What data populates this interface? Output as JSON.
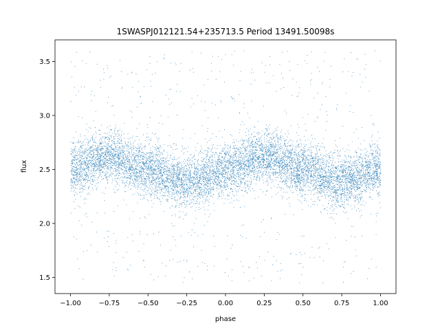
{
  "chart_data": {
    "type": "scatter",
    "title": "1SWASPJ012121.54+235713.5 Period 13491.50098s",
    "xlabel": "phase",
    "ylabel": "flux",
    "xlim": [
      -1.1,
      1.1
    ],
    "ylim": [
      1.35,
      3.7
    ],
    "x_ticks": [
      -1.0,
      -0.75,
      -0.5,
      -0.25,
      0.0,
      0.25,
      0.5,
      0.75,
      1.0
    ],
    "x_tick_labels": [
      "−1.00",
      "−0.75",
      "−0.50",
      "−0.25",
      "0.00",
      "0.25",
      "0.50",
      "0.75",
      "1.00"
    ],
    "y_ticks": [
      1.5,
      2.0,
      2.5,
      3.0,
      3.5
    ],
    "y_tick_labels": [
      "1.5",
      "2.0",
      "2.5",
      "3.0",
      "3.5"
    ],
    "grid": false,
    "legend": "none",
    "marker_color": "#1f77b4",
    "series": [
      {
        "phase_range": [
          -1.0,
          1.0
        ],
        "approx_mean_flux": [
          {
            "phase": -1.0,
            "flux": 2.5
          },
          {
            "phase": -0.75,
            "flux": 2.62
          },
          {
            "phase": -0.5,
            "flux": 2.5
          },
          {
            "phase": -0.25,
            "flux": 2.38
          },
          {
            "phase": 0.0,
            "flux": 2.5
          },
          {
            "phase": 0.25,
            "flux": 2.62
          },
          {
            "phase": 0.5,
            "flux": 2.5
          },
          {
            "phase": 0.75,
            "flux": 2.38
          },
          {
            "phase": 1.0,
            "flux": 2.5
          }
        ],
        "outlier_flux_range": [
          1.45,
          3.6
        ]
      }
    ]
  }
}
